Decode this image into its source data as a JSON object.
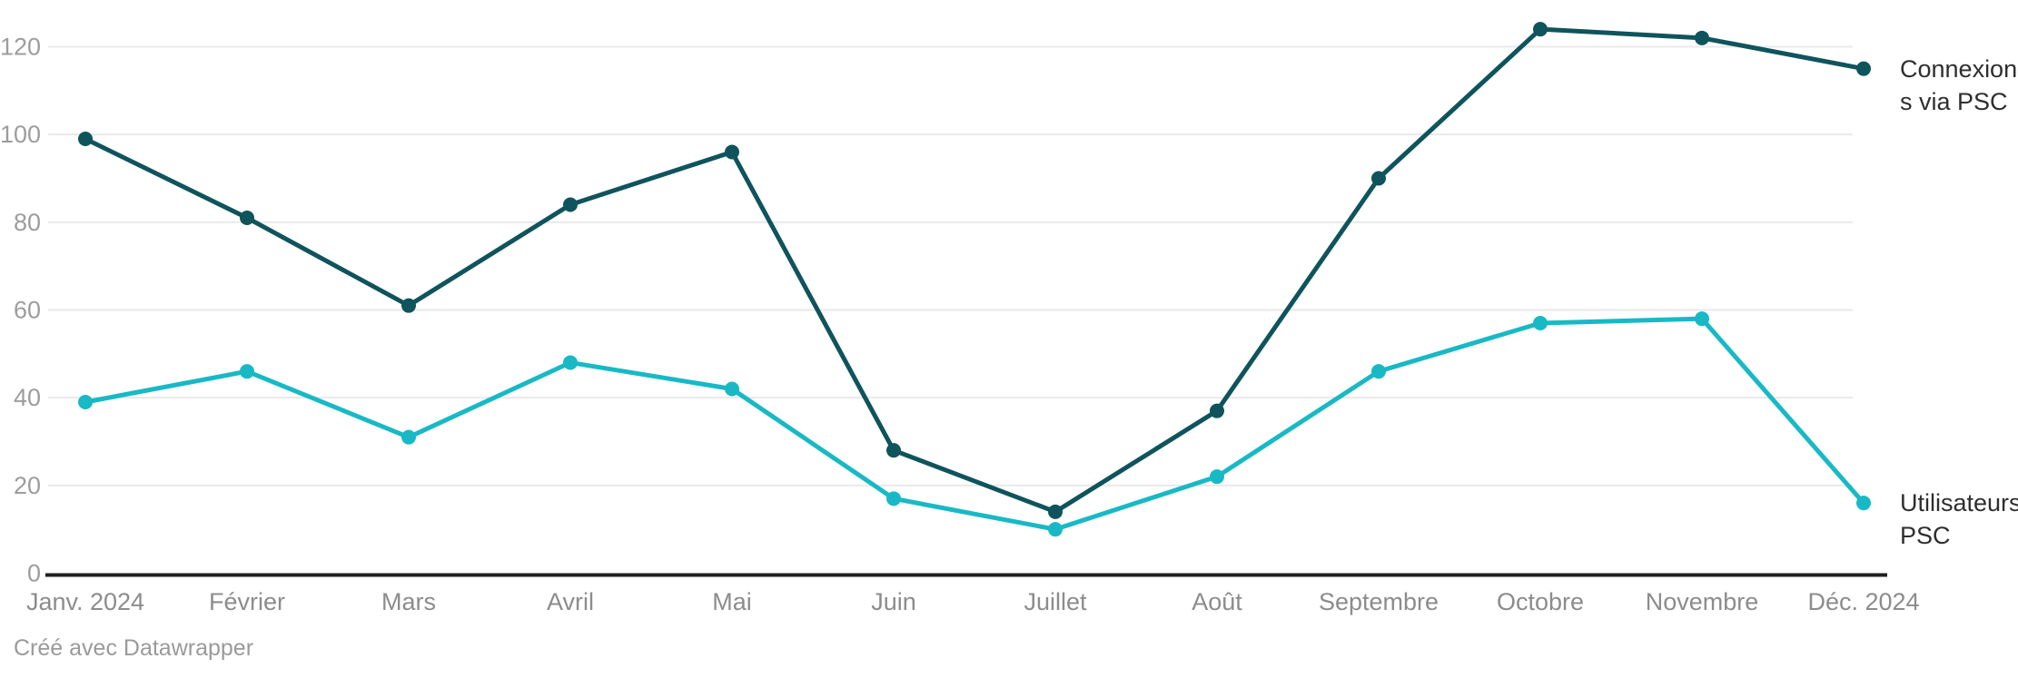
{
  "chart_data": {
    "type": "line",
    "categories": [
      "Janv. 2024",
      "Février",
      "Mars",
      "Avril",
      "Mai",
      "Juin",
      "Juillet",
      "Août",
      "Septembre",
      "Octobre",
      "Novembre",
      "Déc. 2024"
    ],
    "series": [
      {
        "name": "Connexions via PSC",
        "color": "#0f545c",
        "values": [
          99,
          81,
          61,
          84,
          96,
          28,
          14,
          37,
          90,
          124,
          122,
          115
        ]
      },
      {
        "name": "Utilisateurs PSC",
        "color": "#18b9c5",
        "values": [
          39,
          46,
          31,
          48,
          42,
          17,
          10,
          22,
          46,
          57,
          58,
          16
        ]
      }
    ],
    "yticks": [
      0,
      20,
      40,
      60,
      80,
      100,
      120
    ],
    "ylim": [
      0,
      130
    ],
    "xlabel": "",
    "ylabel": "",
    "grid": "horizontal",
    "legend_position": "end-of-line-labels-right"
  },
  "footer": {
    "credit": "Créé avec Datawrapper"
  },
  "colors": {
    "background": "#ffffff",
    "axis_line": "#202020",
    "gridline": "#e9e9e9",
    "y_tick_label": "#9d9d9d",
    "x_tick_label": "#8c8c8c",
    "series_label_text": "#2e2e2e",
    "footer_text": "#9a9a9a",
    "series_dark": "#0f545c",
    "series_cyan": "#18b9c5"
  }
}
